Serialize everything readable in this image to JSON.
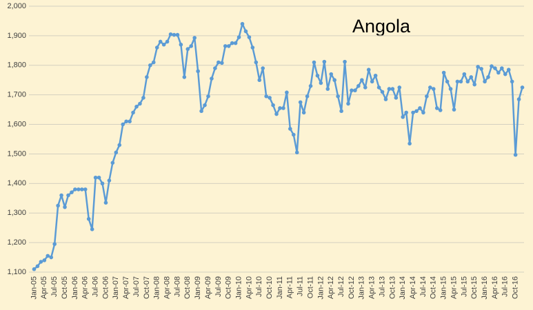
{
  "chart_data": {
    "type": "line",
    "title": "Angola",
    "categories": [
      "Jan-05",
      null,
      null,
      "Apr-05",
      null,
      null,
      "Jul-05",
      null,
      null,
      "Oct-05",
      null,
      null,
      "Jan-06",
      null,
      null,
      "Apr-06",
      null,
      null,
      "Jul-06",
      null,
      null,
      "Oct-06",
      null,
      null,
      "Jan-07",
      null,
      null,
      "Apr-07",
      null,
      null,
      "Jul-07",
      null,
      null,
      "Oct-07",
      null,
      null,
      "Jan-08",
      null,
      null,
      "Apr-08",
      null,
      null,
      "Jul-08",
      null,
      null,
      "Oct-08",
      null,
      null,
      "Jan-09",
      null,
      null,
      "Apr-09",
      null,
      null,
      "Jul-09",
      null,
      null,
      "Oct-09",
      null,
      null,
      "Jan-10",
      null,
      null,
      "Apr-10",
      null,
      null,
      "Jul-10",
      null,
      null,
      "Oct-10",
      null,
      null,
      "Jan-11",
      null,
      null,
      "Apr-11",
      null,
      null,
      "Jul-11",
      null,
      null,
      "Oct-11",
      null,
      null,
      "Jan-12",
      null,
      null,
      "Apr-12",
      null,
      null,
      "Jul-12",
      null,
      null,
      "Oct-12",
      null,
      null,
      "Jan-13",
      null,
      null,
      "Apr-13",
      null,
      null,
      "Jul-13",
      null,
      null,
      "Oct-13",
      null,
      null,
      "Jan-14",
      null,
      null,
      "Apr-14",
      null,
      null,
      "Jul-14",
      null,
      null,
      "Oct-14",
      null,
      null,
      "Jan-15",
      null,
      null,
      "Apr-15",
      null,
      null,
      "Jul-15",
      null,
      null,
      "Oct-15",
      null,
      null,
      "Jan-16",
      null,
      null,
      "Apr-16",
      null,
      null,
      "Jul-16",
      null,
      null,
      "Oct-16",
      null,
      null
    ],
    "values": [
      1110,
      1120,
      1135,
      1140,
      1155,
      1150,
      1195,
      1325,
      1360,
      1320,
      1360,
      1370,
      1380,
      1380,
      1380,
      1380,
      1280,
      1245,
      1420,
      1420,
      1400,
      1335,
      1410,
      1470,
      1505,
      1530,
      1600,
      1610,
      1610,
      1640,
      1660,
      1670,
      1690,
      1760,
      1800,
      1810,
      1860,
      1880,
      1870,
      1880,
      1905,
      1903,
      1903,
      1870,
      1760,
      1855,
      1865,
      1893,
      1780,
      1645,
      1665,
      1695,
      1755,
      1790,
      1810,
      1808,
      1865,
      1865,
      1875,
      1875,
      1895,
      1940,
      1915,
      1895,
      1860,
      1810,
      1750,
      1790,
      1695,
      1690,
      1665,
      1635,
      1655,
      1655,
      1708,
      1585,
      1565,
      1505,
      1675,
      1640,
      1695,
      1730,
      1810,
      1765,
      1740,
      1812,
      1720,
      1770,
      1750,
      1695,
      1645,
      1812,
      1670,
      1715,
      1715,
      1730,
      1750,
      1725,
      1785,
      1745,
      1765,
      1725,
      1710,
      1685,
      1720,
      1720,
      1690,
      1725,
      1625,
      1640,
      1535,
      1640,
      1645,
      1655,
      1640,
      1695,
      1725,
      1720,
      1655,
      1648,
      1775,
      1745,
      1720,
      1650,
      1745,
      1745,
      1770,
      1745,
      1760,
      1735,
      1795,
      1788,
      1745,
      1760,
      1797,
      1790,
      1775,
      1790,
      1770,
      1785,
      1745,
      1497,
      1685,
      1725
    ],
    "color": "#5b9bd5",
    "grid": true,
    "ylim": [
      1100,
      2000
    ],
    "yticks": [
      {
        "value": 1100,
        "label": "1,100"
      },
      {
        "value": 1200,
        "label": "1,200"
      },
      {
        "value": 1300,
        "label": "1,300"
      },
      {
        "value": 1400,
        "label": "1,400"
      },
      {
        "value": 1500,
        "label": "1,500"
      },
      {
        "value": 1600,
        "label": "1,600"
      },
      {
        "value": 1700,
        "label": "1,700"
      },
      {
        "value": 1800,
        "label": "1,800"
      },
      {
        "value": 1900,
        "label": "1,900"
      },
      {
        "value": 2000,
        "label": "2,000"
      }
    ]
  }
}
